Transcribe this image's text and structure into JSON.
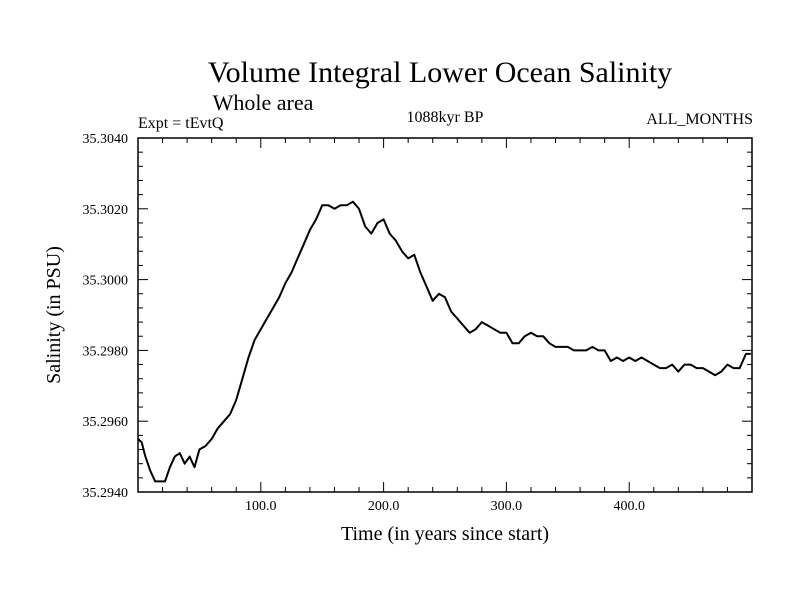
{
  "chart_data": {
    "type": "line",
    "title": "Volume Integral Lower Ocean Salinity",
    "subtitle": "Whole area",
    "experiment_label": "Expt = tEvtQ",
    "period_label": "1088kyr BP",
    "months_label": "ALL_MONTHS",
    "xlabel": "Time (in years since start)",
    "ylabel": "Salinity (in PSU)",
    "xlim": [
      0,
      500
    ],
    "ylim": [
      35.294,
      35.304
    ],
    "x_ticks": [
      100,
      200,
      300,
      400
    ],
    "x_tick_labels": [
      "100.0",
      "200.0",
      "300.0",
      "400.0"
    ],
    "y_ticks": [
      35.294,
      35.296,
      35.298,
      35.3,
      35.302,
      35.304
    ],
    "y_tick_labels": [
      "35.2940",
      "35.2960",
      "35.2980",
      "35.3000",
      "35.3020",
      "35.3040"
    ],
    "series": [
      {
        "name": "Salinity",
        "x": [
          0,
          3,
          6,
          10,
          14,
          18,
          22,
          26,
          30,
          34,
          38,
          42,
          46,
          50,
          55,
          60,
          65,
          70,
          75,
          80,
          85,
          90,
          95,
          100,
          105,
          110,
          115,
          120,
          125,
          130,
          135,
          140,
          145,
          150,
          155,
          160,
          165,
          170,
          175,
          180,
          185,
          190,
          195,
          200,
          205,
          210,
          215,
          220,
          225,
          230,
          235,
          240,
          245,
          250,
          255,
          260,
          265,
          270,
          275,
          280,
          285,
          290,
          295,
          300,
          305,
          310,
          315,
          320,
          325,
          330,
          335,
          340,
          345,
          350,
          355,
          360,
          365,
          370,
          375,
          380,
          385,
          390,
          395,
          400,
          405,
          410,
          415,
          420,
          425,
          430,
          435,
          440,
          445,
          450,
          455,
          460,
          465,
          470,
          475,
          480,
          485,
          490,
          495,
          499
        ],
        "y": [
          35.2955,
          35.2954,
          35.295,
          35.2946,
          35.2943,
          35.2943,
          35.2943,
          35.2947,
          35.295,
          35.2951,
          35.2948,
          35.295,
          35.2947,
          35.2952,
          35.2953,
          35.2955,
          35.2958,
          35.296,
          35.2962,
          35.2966,
          35.2972,
          35.2978,
          35.2983,
          35.2986,
          35.2989,
          35.2992,
          35.2995,
          35.2999,
          35.3002,
          35.3006,
          35.301,
          35.3014,
          35.3017,
          35.3021,
          35.3021,
          35.302,
          35.3021,
          35.3021,
          35.3022,
          35.302,
          35.3015,
          35.3013,
          35.3016,
          35.3017,
          35.3013,
          35.3011,
          35.3008,
          35.3006,
          35.3007,
          35.3002,
          35.2998,
          35.2994,
          35.2996,
          35.2995,
          35.2991,
          35.2989,
          35.2987,
          35.2985,
          35.2986,
          35.2988,
          35.2987,
          35.2986,
          35.2985,
          35.2985,
          35.2982,
          35.2982,
          35.2984,
          35.2985,
          35.2984,
          35.2984,
          35.2982,
          35.2981,
          35.2981,
          35.2981,
          35.298,
          35.298,
          35.298,
          35.2981,
          35.298,
          35.298,
          35.2977,
          35.2978,
          35.2977,
          35.2978,
          35.2977,
          35.2978,
          35.2977,
          35.2976,
          35.2975,
          35.2975,
          35.2976,
          35.2974,
          35.2976,
          35.2976,
          35.2975,
          35.2975,
          35.2974,
          35.2973,
          35.2974,
          35.2976,
          35.2975,
          35.2975,
          35.2979,
          35.2979
        ]
      }
    ]
  }
}
